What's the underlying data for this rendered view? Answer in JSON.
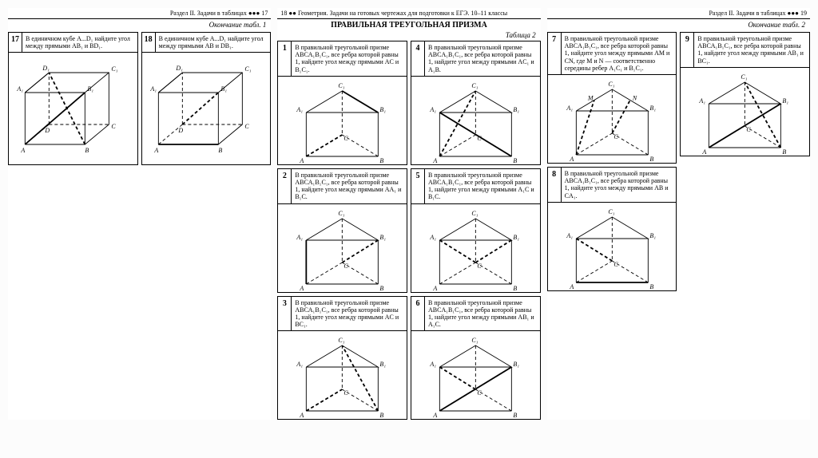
{
  "page17": {
    "header_left": "Раздел II. Задачи в таблицах ●●● 17",
    "sub": "Окончание табл. 1",
    "cells": [
      {
        "num": "17",
        "txt": "В единичном кубе A...D₁ найдите угол между прямыми AB₁ и BD₁."
      },
      {
        "num": "18",
        "txt": "В единичном кубе A...D₁ найдите угол между прямыми AB и DB₁."
      }
    ]
  },
  "page18": {
    "header_center": "18 ●● Геометрия. Задачи на готовых чертежах для подготовки к ЕГЭ. 10–11 классы",
    "title": "ПРАВИЛЬНАЯ ТРЕУГОЛЬНАЯ ПРИЗМА",
    "tbl": "Таблица 2",
    "cells": [
      {
        "num": "1",
        "txt": "В правильной треугольной призме ABCA₁B₁C₁, все ребра которой равны 1, найдите угол между прямыми AC и B₁C₁."
      },
      {
        "num": "2",
        "txt": "В правильной треугольной призме ABCA₁B₁C₁, все ребра которой равны 1, найдите угол между прямыми AA₁ и B₁C."
      },
      {
        "num": "3",
        "txt": "В правильной треугольной призме ABCA₁B₁C₁, все ребра которой равны 1, найдите угол между прямыми AC и BC₁."
      },
      {
        "num": "4",
        "txt": "В правильной треугольной призме ABCA₁B₁C₁, все ребра которой равны 1, найдите угол между прямыми AC₁ и A₁B."
      },
      {
        "num": "5",
        "txt": "В правильной треугольной призме ABCA₁B₁C₁, все ребра которой равны 1, найдите угол между прямыми A₁C и B₁C."
      },
      {
        "num": "6",
        "txt": "В правильной треугольной призме ABCA₁B₁C₁, все ребра которой равны 1, найдите угол между прямыми AB₁ и A₁C."
      }
    ]
  },
  "page19": {
    "header_right": "Раздел II. Задачи в таблицах ●●● 19",
    "sub": "Окончание табл. 2",
    "cells": [
      {
        "num": "7",
        "txt": "В правильной треугольной призме ABCA₁B₁C₁, все ребра которой равны 1, найдите угол между прямыми AM и CN, где M и N — соответственно середины ребер A₁C₁ и B₁C₁."
      },
      {
        "num": "8",
        "txt": "В правильной треугольной призме ABCA₁B₁C₁, все ребра которой равны 1, найдите угол между прямыми AB и CA₁."
      },
      {
        "num": "9",
        "txt": "В правильной треугольной призме ABCA₁B₁C₁, все ребра которой равны 1, найдите угол между прямыми AB₁ и BC₁."
      }
    ]
  },
  "style": {
    "stroke": "#000",
    "dash": "4,3",
    "thick": 1.8,
    "thin": 0.9
  }
}
